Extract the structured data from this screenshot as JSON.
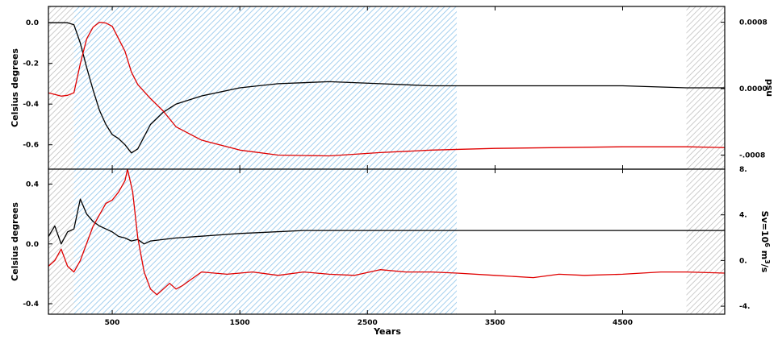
{
  "chart_data": [
    {
      "type": "line",
      "panel": "top",
      "xlim": [
        0,
        5300
      ],
      "x_ticks": [
        500,
        1500,
        2500,
        3500,
        4500
      ],
      "ylabel_left": "Celsius degrees",
      "ylim_left": [
        -0.72,
        0.08
      ],
      "y_ticks_left": [
        "0.0",
        "-0.2",
        "-0.4",
        "-0.6"
      ],
      "ylabel_right": "psu",
      "ylim_right": [
        -0.00097,
        0.00099
      ],
      "y_ticks_right": [
        "0.0008",
        "0.0000",
        "-.0008"
      ],
      "shaded_regions": [
        {
          "kind": "gray-hatch",
          "from": 0,
          "to": 200
        },
        {
          "kind": "blue-hatch",
          "from": 200,
          "to": 3200
        },
        {
          "kind": "gray-hatch",
          "from": 5000,
          "to": 5300
        }
      ],
      "series": [
        {
          "color": "#000000",
          "axis": "left",
          "x": [
            0,
            150,
            200,
            250,
            300,
            350,
            400,
            450,
            500,
            550,
            600,
            650,
            700,
            750,
            800,
            900,
            1000,
            1200,
            1500,
            1800,
            2200,
            2600,
            3000,
            3200,
            4000,
            4500,
            5000,
            5300
          ],
          "y": [
            0.0,
            0.0,
            -0.01,
            -0.1,
            -0.22,
            -0.33,
            -0.43,
            -0.5,
            -0.55,
            -0.57,
            -0.6,
            -0.64,
            -0.62,
            -0.56,
            -0.5,
            -0.44,
            -0.4,
            -0.36,
            -0.32,
            -0.3,
            -0.29,
            -0.3,
            -0.31,
            -0.31,
            -0.31,
            -0.31,
            -0.32,
            -0.32
          ]
        },
        {
          "color": "#e00000",
          "axis": "right",
          "x": [
            0,
            50,
            100,
            150,
            200,
            250,
            300,
            350,
            400,
            450,
            500,
            550,
            600,
            650,
            700,
            800,
            900,
            1000,
            1200,
            1500,
            1800,
            2200,
            2600,
            3000,
            3500,
            4000,
            4500,
            5000,
            5300
          ],
          "y": [
            -5e-05,
            -7e-05,
            -9e-05,
            -8e-05,
            -5e-05,
            0.0003,
            0.0006,
            0.00074,
            0.0008,
            0.00079,
            0.00075,
            0.0006,
            0.00045,
            0.0002,
            5e-05,
            -0.00012,
            -0.00027,
            -0.00046,
            -0.00062,
            -0.00074,
            -0.0008,
            -0.00081,
            -0.00077,
            -0.00074,
            -0.00072,
            -0.00071,
            -0.0007,
            -0.0007,
            -0.00071
          ]
        }
      ]
    },
    {
      "type": "line",
      "panel": "bottom",
      "xlim": [
        0,
        5300
      ],
      "xlabel": "Years",
      "x_ticks": [
        500,
        1500,
        2500,
        3500,
        4500
      ],
      "ylabel_left": "Celsius degrees",
      "ylim_left": [
        -0.47,
        0.5
      ],
      "y_ticks_left": [
        "0.4",
        "0.0",
        "-0.4"
      ],
      "ylabel_right": "Sv=10^6 m^3/s",
      "ylim_right": [
        -4.7,
        8.0
      ],
      "y_ticks_right": [
        "8.",
        "4.",
        "0.",
        "-4."
      ],
      "shaded_regions": [
        {
          "kind": "gray-hatch",
          "from": 0,
          "to": 200
        },
        {
          "kind": "blue-hatch",
          "from": 200,
          "to": 3200
        },
        {
          "kind": "gray-hatch",
          "from": 5000,
          "to": 5300
        }
      ],
      "series": [
        {
          "color": "#000000",
          "axis": "left",
          "x": [
            0,
            50,
            100,
            150,
            200,
            250,
            300,
            350,
            400,
            450,
            500,
            550,
            600,
            650,
            700,
            750,
            800,
            1000,
            1500,
            2000,
            2500,
            3000,
            3500,
            4000,
            4500,
            5000,
            5300
          ],
          "y": [
            0.05,
            0.12,
            0.0,
            0.08,
            0.1,
            0.3,
            0.2,
            0.15,
            0.12,
            0.1,
            0.08,
            0.05,
            0.04,
            0.02,
            0.03,
            0.0,
            0.02,
            0.04,
            0.07,
            0.09,
            0.09,
            0.09,
            0.09,
            0.09,
            0.09,
            0.09,
            0.09
          ]
        },
        {
          "color": "#e00000",
          "axis": "right",
          "x": [
            0,
            50,
            100,
            150,
            200,
            250,
            300,
            350,
            400,
            450,
            500,
            550,
            600,
            620,
            660,
            700,
            750,
            800,
            850,
            900,
            950,
            1000,
            1050,
            1100,
            1200,
            1400,
            1600,
            1800,
            2000,
            2200,
            2400,
            2600,
            2800,
            3000,
            3200,
            3500,
            3800,
            4000,
            4200,
            4500,
            4800,
            5000,
            5300
          ],
          "y": [
            -0.5,
            0.0,
            1.0,
            -0.5,
            -1.0,
            0.0,
            1.5,
            3.0,
            4.0,
            5.0,
            5.3,
            6.0,
            7.0,
            8.0,
            6.0,
            2.0,
            -1.0,
            -2.5,
            -3.0,
            -2.5,
            -2.0,
            -2.5,
            -2.2,
            -1.8,
            -1.0,
            -1.2,
            -1.0,
            -1.3,
            -1.0,
            -1.2,
            -1.3,
            -0.8,
            -1.0,
            -1.0,
            -1.1,
            -1.3,
            -1.5,
            -1.2,
            -1.3,
            -1.2,
            -1.0,
            -1.0,
            -1.1
          ]
        }
      ]
    }
  ]
}
